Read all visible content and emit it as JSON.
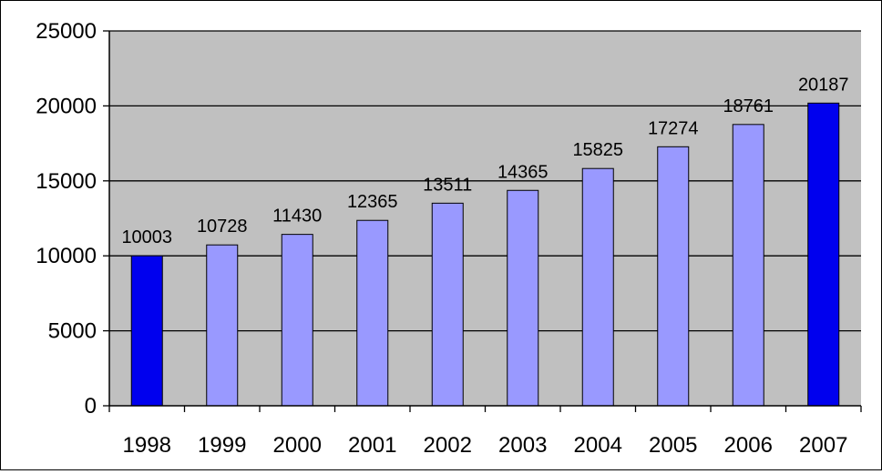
{
  "chart_data": {
    "type": "bar",
    "categories": [
      "1998",
      "1999",
      "2000",
      "2001",
      "2002",
      "2003",
      "2004",
      "2005",
      "2006",
      "2007"
    ],
    "values": [
      10003,
      10728,
      11430,
      12365,
      13511,
      14365,
      15825,
      17274,
      18761,
      20187
    ],
    "data_labels": [
      "10003",
      "10728",
      "11430",
      "12365",
      "13511",
      "14365",
      "15825",
      "17274",
      "18761",
      "20187"
    ],
    "highlighted_categories": [
      "1998",
      "2007"
    ],
    "title": "",
    "xlabel": "",
    "ylabel": "",
    "ylim": [
      0,
      25000
    ],
    "y_ticks": [
      0,
      5000,
      10000,
      15000,
      20000,
      25000
    ],
    "y_tick_labels": [
      "0",
      "5000",
      "10000",
      "15000",
      "20000",
      "25000"
    ],
    "grid": true,
    "legend": "none",
    "colors": {
      "plot_background": "#c0c0c0",
      "bar": "#9999ff",
      "bar_highlight": "#0000ee",
      "bar_outline": "#000000",
      "gridline": "#000000"
    }
  }
}
